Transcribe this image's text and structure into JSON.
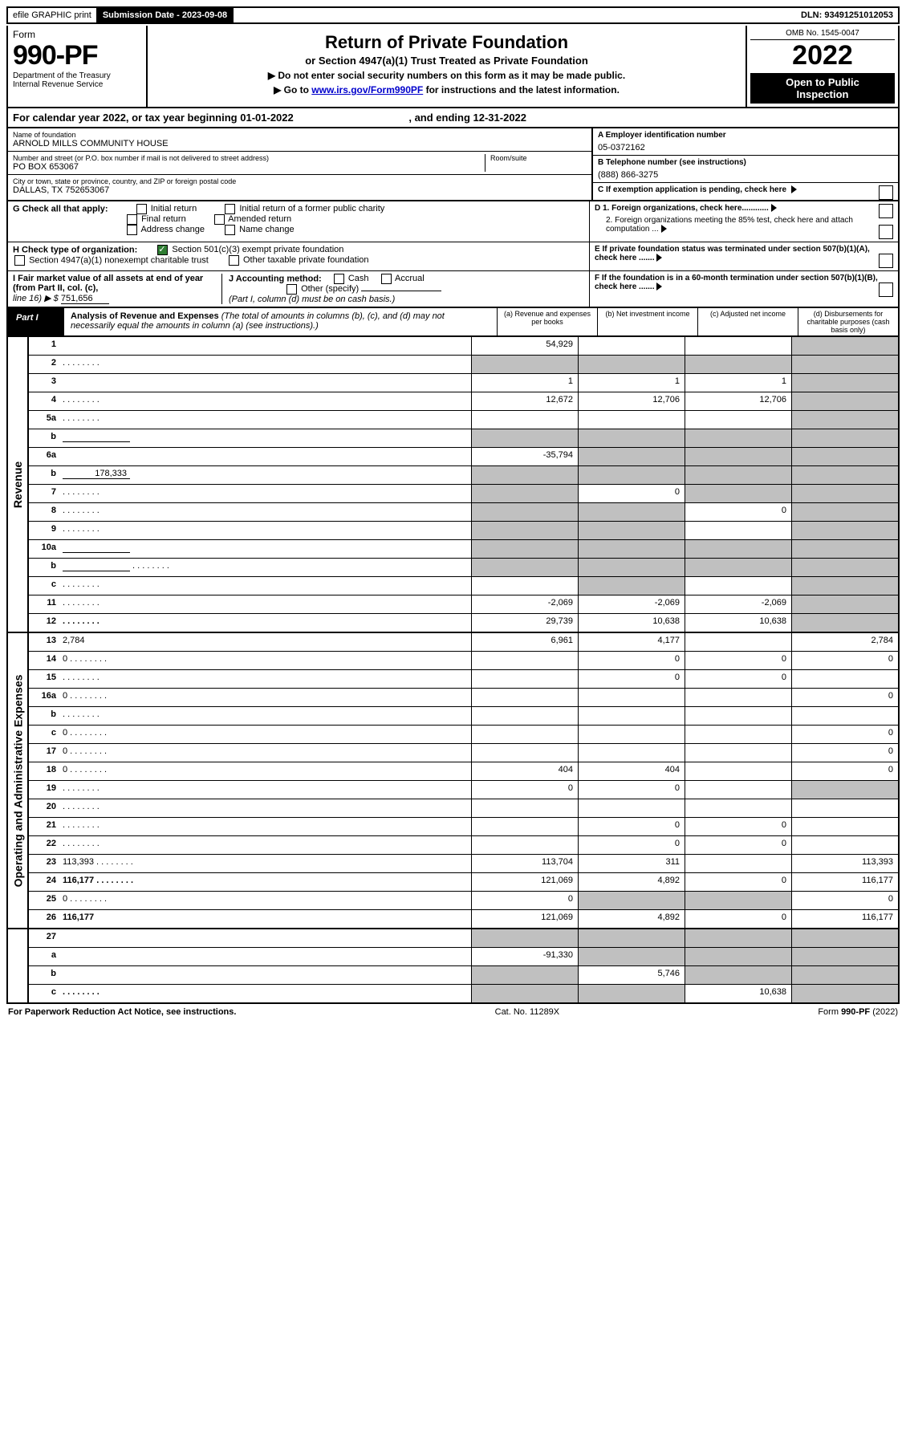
{
  "colors": {
    "black": "#000000",
    "white": "#ffffff",
    "grey": "#c0c0c0",
    "link": "#0000cc",
    "check_green": "#2e7d32"
  },
  "top_bar": {
    "efile": "efile GRAPHIC print",
    "sub_label": "Submission Date - 2023-09-08",
    "dln": "DLN: 93491251012053"
  },
  "header": {
    "form_word": "Form",
    "form_no": "990-PF",
    "dept1": "Department of the Treasury",
    "dept2": "Internal Revenue Service",
    "title": "Return of Private Foundation",
    "subtitle": "or Section 4947(a)(1) Trust Treated as Private Foundation",
    "note1": "▶ Do not enter social security numbers on this form as it may be made public.",
    "note2_pre": "▶ Go to ",
    "note2_link": "www.irs.gov/Form990PF",
    "note2_post": " for instructions and the latest information.",
    "omb": "OMB No. 1545-0047",
    "year": "2022",
    "open1": "Open to Public",
    "open2": "Inspection"
  },
  "cal_year": {
    "pre": "For calendar year 2022, or tax year beginning ",
    "begin": "01-01-2022",
    "mid": " , and ending ",
    "end": "12-31-2022"
  },
  "info": {
    "name_lbl": "Name of foundation",
    "name": "ARNOLD MILLS COMMUNITY HOUSE",
    "addr_lbl": "Number and street (or P.O. box number if mail is not delivered to street address)",
    "room_lbl": "Room/suite",
    "addr": "PO BOX 653067",
    "city_lbl": "City or town, state or province, country, and ZIP or foreign postal code",
    "city": "DALLAS, TX  752653067",
    "a_lbl": "A Employer identification number",
    "a_val": "05-0372162",
    "b_lbl": "B Telephone number (see instructions)",
    "b_val": "(888) 866-3275",
    "c_lbl": "C If exemption application is pending, check here",
    "g_lbl": "G Check all that apply:",
    "g_initial": "Initial return",
    "g_initial_former": "Initial return of a former public charity",
    "g_final": "Final return",
    "g_amended": "Amended return",
    "g_address": "Address change",
    "g_name": "Name change",
    "d1": "D 1. Foreign organizations, check here............",
    "d2": "2. Foreign organizations meeting the 85% test, check here and attach computation ...",
    "h_lbl": "H Check type of organization:",
    "h_501c3": "Section 501(c)(3) exempt private foundation",
    "h_4947": "Section 4947(a)(1) nonexempt charitable trust",
    "h_other": "Other taxable private foundation",
    "e_lbl": "E  If private foundation status was terminated under section 507(b)(1)(A), check here .......",
    "i_lbl": "I Fair market value of all assets at end of year (from Part II, col. (c),",
    "i_line": "line 16) ▶ $",
    "i_val": "751,656",
    "j_lbl": "J Accounting method:",
    "j_cash": "Cash",
    "j_accrual": "Accrual",
    "j_other": "Other (specify)",
    "j_note": "(Part I, column (d) must be on cash basis.)",
    "f_lbl": "F  If the foundation is in a 60-month termination under section 507(b)(1)(B), check here .......",
    "part_tag": "Part I",
    "part_title": "Analysis of Revenue and Expenses",
    "part_note": " (The total of amounts in columns (b), (c), and (d) may not necessarily equal the amounts in column (a) (see instructions).)",
    "col_a": "(a) Revenue and expenses per books",
    "col_b": "(b) Net investment income",
    "col_c": "(c) Adjusted net income",
    "col_d": "(d) Disbursements for charitable purposes (cash basis only)"
  },
  "side_labels": {
    "revenue": "Revenue",
    "expenses": "Operating and Administrative Expenses"
  },
  "lines": [
    {
      "n": "1",
      "d": "",
      "a": "54,929",
      "b": "",
      "c": "",
      "bg": false,
      "cg": false,
      "dg": true
    },
    {
      "n": "2",
      "d": "",
      "a": "",
      "b": "",
      "c": "",
      "ag": true,
      "bg": true,
      "cg": true,
      "dg": true,
      "dots": true
    },
    {
      "n": "3",
      "d": "",
      "a": "1",
      "b": "1",
      "c": "1",
      "dg": true
    },
    {
      "n": "4",
      "d": "",
      "a": "12,672",
      "b": "12,706",
      "c": "12,706",
      "dg": true,
      "dots": true
    },
    {
      "n": "5a",
      "d": "",
      "a": "",
      "b": "",
      "c": "",
      "dg": true,
      "dots": true
    },
    {
      "n": "b",
      "d": "",
      "a": "",
      "b": "",
      "c": "",
      "ag": true,
      "bg": true,
      "cg": true,
      "dg": true,
      "inline_box": true
    },
    {
      "n": "6a",
      "d": "",
      "a": "-35,794",
      "b": "",
      "c": "",
      "bg": true,
      "cg": true,
      "dg": true
    },
    {
      "n": "b",
      "d": "",
      "a": "",
      "b": "",
      "c": "",
      "ag": true,
      "bg": true,
      "cg": true,
      "dg": true,
      "inline_val": "178,333"
    },
    {
      "n": "7",
      "d": "",
      "a": "",
      "b": "0",
      "c": "",
      "ag": true,
      "cg": true,
      "dg": true,
      "dots": true
    },
    {
      "n": "8",
      "d": "",
      "a": "",
      "b": "",
      "c": "0",
      "ag": true,
      "bg": true,
      "dg": true,
      "dots": true
    },
    {
      "n": "9",
      "d": "",
      "a": "",
      "b": "",
      "c": "",
      "ag": true,
      "bg": true,
      "dg": true,
      "dots": true
    },
    {
      "n": "10a",
      "d": "",
      "a": "",
      "b": "",
      "c": "",
      "ag": true,
      "bg": true,
      "cg": true,
      "dg": true,
      "inline_box": true
    },
    {
      "n": "b",
      "d": "",
      "a": "",
      "b": "",
      "c": "",
      "ag": true,
      "bg": true,
      "cg": true,
      "dg": true,
      "inline_box": true,
      "dots": true
    },
    {
      "n": "c",
      "d": "",
      "a": "",
      "b": "",
      "c": "",
      "bg": true,
      "dg": true,
      "dots": true
    },
    {
      "n": "11",
      "d": "",
      "a": "-2,069",
      "b": "-2,069",
      "c": "-2,069",
      "dg": true,
      "dots": true
    },
    {
      "n": "12",
      "d": "",
      "a": "29,739",
      "b": "10,638",
      "c": "10,638",
      "dg": true,
      "bold": true,
      "dots": true
    }
  ],
  "exp_lines": [
    {
      "n": "13",
      "d": "2,784",
      "a": "6,961",
      "b": "4,177",
      "c": ""
    },
    {
      "n": "14",
      "d": "0",
      "a": "",
      "b": "0",
      "c": "0",
      "dots": true
    },
    {
      "n": "15",
      "d": "",
      "a": "",
      "b": "0",
      "c": "0",
      "dots": true
    },
    {
      "n": "16a",
      "d": "0",
      "a": "",
      "b": "",
      "c": "",
      "dots": true
    },
    {
      "n": "b",
      "d": "",
      "a": "",
      "b": "",
      "c": "",
      "dots": true
    },
    {
      "n": "c",
      "d": "0",
      "a": "",
      "b": "",
      "c": "",
      "dots": true
    },
    {
      "n": "17",
      "d": "0",
      "a": "",
      "b": "",
      "c": "",
      "dots": true
    },
    {
      "n": "18",
      "d": "0",
      "a": "404",
      "b": "404",
      "c": "",
      "dots": true
    },
    {
      "n": "19",
      "d": "",
      "a": "0",
      "b": "0",
      "c": "",
      "dg": true,
      "dots": true
    },
    {
      "n": "20",
      "d": "",
      "a": "",
      "b": "",
      "c": "",
      "dots": true
    },
    {
      "n": "21",
      "d": "",
      "a": "",
      "b": "0",
      "c": "0",
      "dots": true
    },
    {
      "n": "22",
      "d": "",
      "a": "",
      "b": "0",
      "c": "0",
      "dots": true
    },
    {
      "n": "23",
      "d": "113,393",
      "a": "113,704",
      "b": "311",
      "c": "",
      "dots": true
    },
    {
      "n": "24",
      "d": "116,177",
      "a": "121,069",
      "b": "4,892",
      "c": "0",
      "bold": true,
      "dots": true
    },
    {
      "n": "25",
      "d": "0",
      "a": "0",
      "b": "",
      "c": "",
      "bg": true,
      "cg": true,
      "dots": true
    },
    {
      "n": "26",
      "d": "116,177",
      "a": "121,069",
      "b": "4,892",
      "c": "0",
      "bold": true
    }
  ],
  "final_lines": [
    {
      "n": "27",
      "d": "",
      "a": "",
      "b": "",
      "c": "",
      "ag": true,
      "bg": true,
      "cg": true,
      "dg": true
    },
    {
      "n": "a",
      "d": "",
      "a": "-91,330",
      "b": "",
      "c": "",
      "bold": true,
      "bg": true,
      "cg": true,
      "dg": true
    },
    {
      "n": "b",
      "d": "",
      "a": "",
      "b": "5,746",
      "c": "",
      "bold": true,
      "ag": true,
      "cg": true,
      "dg": true
    },
    {
      "n": "c",
      "d": "",
      "a": "",
      "b": "",
      "c": "10,638",
      "bold": true,
      "ag": true,
      "bg": true,
      "dg": true,
      "dots": true
    }
  ],
  "footer": {
    "left": "For Paperwork Reduction Act Notice, see instructions.",
    "mid": "Cat. No. 11289X",
    "right": "Form 990-PF (2022)"
  }
}
